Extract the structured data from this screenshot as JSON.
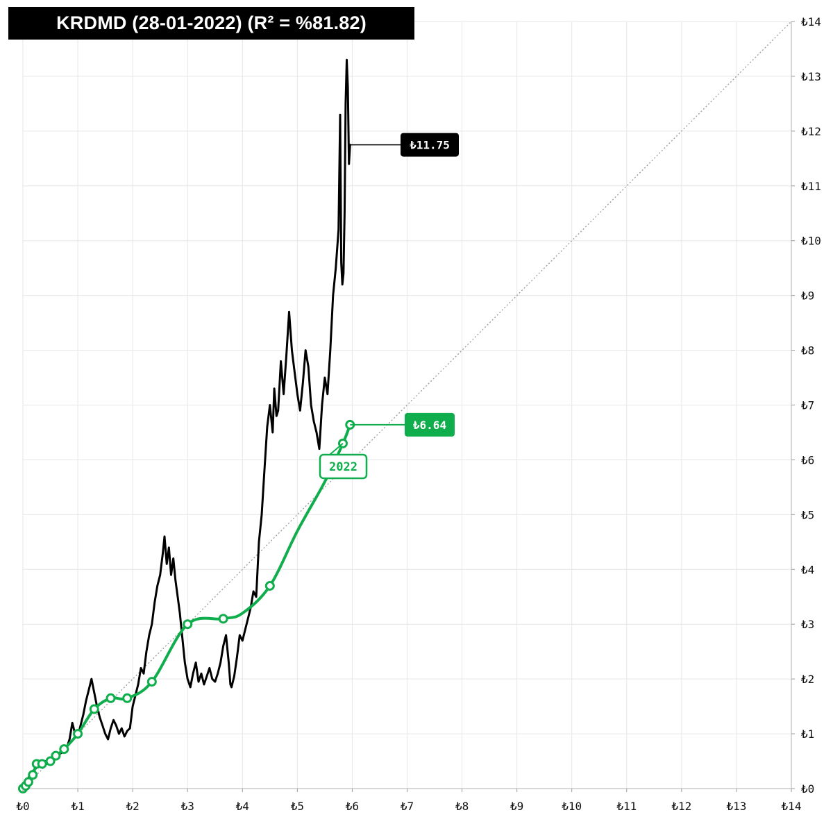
{
  "title": "KRDMD (28-01-2022) (R² = %81.82)",
  "colors": {
    "price_line": "#000000",
    "fair_value_line": "#0fad4b",
    "grid": "#e6e6e6",
    "diagonal": "#999999",
    "axis": "#cccccc"
  },
  "chart_data": {
    "type": "line",
    "title": "KRDMD (28-01-2022) (R² = %81.82)",
    "xlim": [
      0,
      14
    ],
    "ylim": [
      0,
      14
    ],
    "x_ticks": [
      "₺0",
      "₺1",
      "₺2",
      "₺3",
      "₺4",
      "₺5",
      "₺6",
      "₺7",
      "₺8",
      "₺9",
      "₺10",
      "₺11",
      "₺12",
      "₺13",
      "₺14"
    ],
    "y_ticks": [
      "₺0",
      "₺1",
      "₺2",
      "₺3",
      "₺4",
      "₺5",
      "₺6",
      "₺7",
      "₺8",
      "₺9",
      "₺10",
      "₺11",
      "₺12",
      "₺13",
      "₺14"
    ],
    "y_axis_position": "right",
    "grid": true,
    "diagonal_reference": {
      "from": [
        0,
        0
      ],
      "to": [
        14,
        14
      ],
      "style": "dotted"
    },
    "series": [
      {
        "role": "price",
        "color": "#000000",
        "x": [
          0.0,
          0.08,
          0.15,
          0.22,
          0.3,
          0.4,
          0.5,
          0.6,
          0.7,
          0.8,
          0.85,
          0.9,
          0.95,
          1.0,
          1.05,
          1.1,
          1.15,
          1.2,
          1.25,
          1.3,
          1.35,
          1.4,
          1.45,
          1.5,
          1.55,
          1.6,
          1.65,
          1.7,
          1.75,
          1.8,
          1.85,
          1.9,
          1.95,
          2.0,
          2.05,
          2.1,
          2.15,
          2.2,
          2.25,
          2.3,
          2.35,
          2.4,
          2.45,
          2.5,
          2.55,
          2.58,
          2.62,
          2.66,
          2.7,
          2.74,
          2.78,
          2.82,
          2.86,
          2.9,
          2.95,
          3.0,
          3.05,
          3.1,
          3.15,
          3.2,
          3.25,
          3.3,
          3.35,
          3.4,
          3.45,
          3.5,
          3.55,
          3.6,
          3.65,
          3.7,
          3.75,
          3.78,
          3.8,
          3.85,
          3.9,
          3.95,
          4.0,
          4.05,
          4.1,
          4.15,
          4.2,
          4.25,
          4.3,
          4.35,
          4.4,
          4.45,
          4.5,
          4.55,
          4.58,
          4.62,
          4.65,
          4.7,
          4.75,
          4.8,
          4.85,
          4.9,
          4.95,
          5.0,
          5.05,
          5.1,
          5.15,
          5.2,
          5.25,
          5.3,
          5.35,
          5.4,
          5.45,
          5.5,
          5.55,
          5.6,
          5.65,
          5.7,
          5.75,
          5.78,
          5.8,
          5.82,
          5.84,
          5.86,
          5.88,
          5.9,
          5.92,
          5.94,
          5.96
        ],
        "y": [
          0.0,
          0.15,
          0.3,
          0.35,
          0.45,
          0.5,
          0.5,
          0.6,
          0.65,
          0.75,
          0.9,
          1.2,
          1.0,
          0.95,
          1.15,
          1.35,
          1.6,
          1.8,
          2.0,
          1.75,
          1.5,
          1.3,
          1.15,
          1.0,
          0.9,
          1.1,
          1.25,
          1.15,
          1.0,
          1.1,
          0.95,
          1.05,
          1.1,
          1.5,
          1.7,
          1.9,
          2.2,
          2.1,
          2.5,
          2.8,
          3.0,
          3.4,
          3.7,
          3.9,
          4.3,
          4.6,
          4.1,
          4.4,
          3.9,
          4.2,
          3.8,
          3.5,
          3.2,
          2.8,
          2.3,
          2.0,
          1.85,
          2.1,
          2.3,
          1.95,
          2.1,
          1.9,
          2.05,
          2.2,
          2.0,
          1.95,
          2.1,
          2.3,
          2.6,
          2.8,
          2.3,
          1.9,
          1.85,
          2.05,
          2.4,
          2.8,
          2.7,
          2.9,
          3.1,
          3.3,
          3.6,
          3.5,
          4.5,
          5.0,
          5.8,
          6.6,
          7.0,
          6.5,
          7.3,
          6.8,
          6.9,
          7.8,
          7.2,
          7.9,
          8.7,
          8.0,
          7.6,
          7.2,
          6.9,
          7.4,
          8.0,
          7.7,
          7.0,
          6.7,
          6.5,
          6.2,
          7.0,
          7.5,
          7.2,
          8.0,
          9.0,
          9.5,
          10.2,
          12.3,
          9.6,
          9.2,
          9.4,
          10.5,
          12.5,
          13.3,
          12.8,
          11.4,
          11.75
        ]
      },
      {
        "role": "fair-value",
        "color": "#0fad4b",
        "x": [
          0.0,
          0.05,
          0.1,
          0.18,
          0.25,
          0.3,
          0.35,
          0.42,
          0.5,
          0.6,
          0.75,
          1.0,
          1.3,
          1.6,
          1.9,
          2.35,
          3.0,
          3.65,
          4.0,
          4.5,
          5.0,
          5.5,
          5.83,
          5.96
        ],
        "y": [
          0.0,
          0.05,
          0.12,
          0.25,
          0.45,
          0.42,
          0.45,
          0.45,
          0.5,
          0.6,
          0.72,
          1.0,
          1.45,
          1.65,
          1.65,
          1.95,
          3.0,
          3.1,
          3.2,
          3.7,
          4.7,
          5.6,
          6.3,
          6.64
        ],
        "markers": [
          [
            0.0,
            0.0
          ],
          [
            0.05,
            0.05
          ],
          [
            0.1,
            0.12
          ],
          [
            0.18,
            0.25
          ],
          [
            0.25,
            0.45
          ],
          [
            0.35,
            0.45
          ],
          [
            0.5,
            0.5
          ],
          [
            0.6,
            0.6
          ],
          [
            0.75,
            0.72
          ],
          [
            1.0,
            1.0
          ],
          [
            1.3,
            1.45
          ],
          [
            1.6,
            1.65
          ],
          [
            1.9,
            1.65
          ],
          [
            2.35,
            1.95
          ],
          [
            3.0,
            3.0
          ],
          [
            3.65,
            3.1
          ],
          [
            4.5,
            3.7
          ],
          [
            5.83,
            6.3
          ],
          [
            5.96,
            6.64
          ]
        ]
      }
    ],
    "annotations": [
      {
        "label": "₺11.75",
        "series": "price",
        "point": [
          5.96,
          11.75
        ],
        "box_color": "#000000"
      },
      {
        "label": "₺6.64",
        "series": "fair-value",
        "point": [
          5.96,
          6.64
        ],
        "box_color": "#0fad4b"
      },
      {
        "label": "2022",
        "series": "fair-value",
        "point": [
          5.83,
          6.3
        ],
        "box_color": "#ffffff"
      }
    ]
  }
}
